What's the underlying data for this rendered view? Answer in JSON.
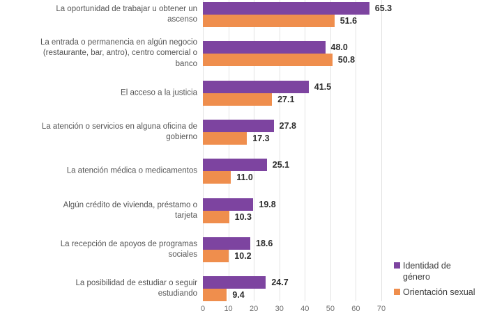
{
  "chart_data": {
    "type": "bar",
    "orientation": "horizontal",
    "title": "",
    "xlabel": "",
    "ylabel": "",
    "xlim": [
      0,
      70
    ],
    "x_ticks": [
      0,
      10,
      20,
      30,
      40,
      50,
      60,
      70
    ],
    "grid": "vertical-only",
    "legend_position": "right-bottom",
    "categories": [
      "La oportunidad de trabajar u obtener un ascenso",
      "La entrada o permanencia en algún negocio (restaurante, bar, antro), centro comercial o banco",
      "El acceso a la justicia",
      "La atención o servicios en alguna oficina de gobierno",
      "La atención médica o medicamentos",
      "Algún crédito de vivienda, préstamo o tarjeta",
      "La recepción de apoyos de programas sociales",
      "La posibilidad de estudiar o seguir estudiando"
    ],
    "category_display_lines": [
      [
        "La oportunidad de trabajar u obtener un",
        "ascenso"
      ],
      [
        "La entrada o permanencia en algún negocio",
        "(restaurante, bar, antro), centro comercial o",
        "banco"
      ],
      [
        "El acceso a la justicia"
      ],
      [
        "La atención o servicios en alguna oficina de",
        "gobierno"
      ],
      [
        "La atención médica o medicamentos"
      ],
      [
        "Algún crédito de vivienda, préstamo o",
        "tarjeta"
      ],
      [
        "La recepción de apoyos de programas",
        "sociales"
      ],
      [
        "La posibilidad de estudiar o seguir",
        "estudiando"
      ]
    ],
    "series": [
      {
        "name": "Identidad de género",
        "color": "#7d44a0",
        "values": [
          65.3,
          48.0,
          41.5,
          27.8,
          25.1,
          19.8,
          18.6,
          24.7
        ],
        "value_labels": [
          "65.3",
          "48.0",
          "41.5",
          "27.8",
          "25.1",
          "19.8",
          "18.6",
          "24.7"
        ]
      },
      {
        "name": "Orientación sexual",
        "color": "#ef8e4d",
        "values": [
          51.6,
          50.8,
          27.1,
          17.3,
          11.0,
          10.3,
          10.2,
          9.4
        ],
        "value_labels": [
          "51.6",
          "50.8",
          "27.1",
          "17.3",
          "11.0",
          "10.3",
          "10.2",
          "9.4"
        ]
      }
    ]
  },
  "legend": {
    "items": [
      {
        "label": "Identidad de género",
        "display_lines": [
          "Identidad de",
          "género"
        ],
        "color": "#7d44a0"
      },
      {
        "label": "Orientación sexual",
        "display_lines": [
          "Orientación sexual"
        ],
        "color": "#ef8e4d"
      }
    ]
  },
  "colors": {
    "grid": "#e3e3e3",
    "category_text": "#545454",
    "value_text": "#2d2d2d",
    "axis_text": "#6e6e6e",
    "legend_text": "#3d3d3d",
    "background": "#ffffff"
  }
}
